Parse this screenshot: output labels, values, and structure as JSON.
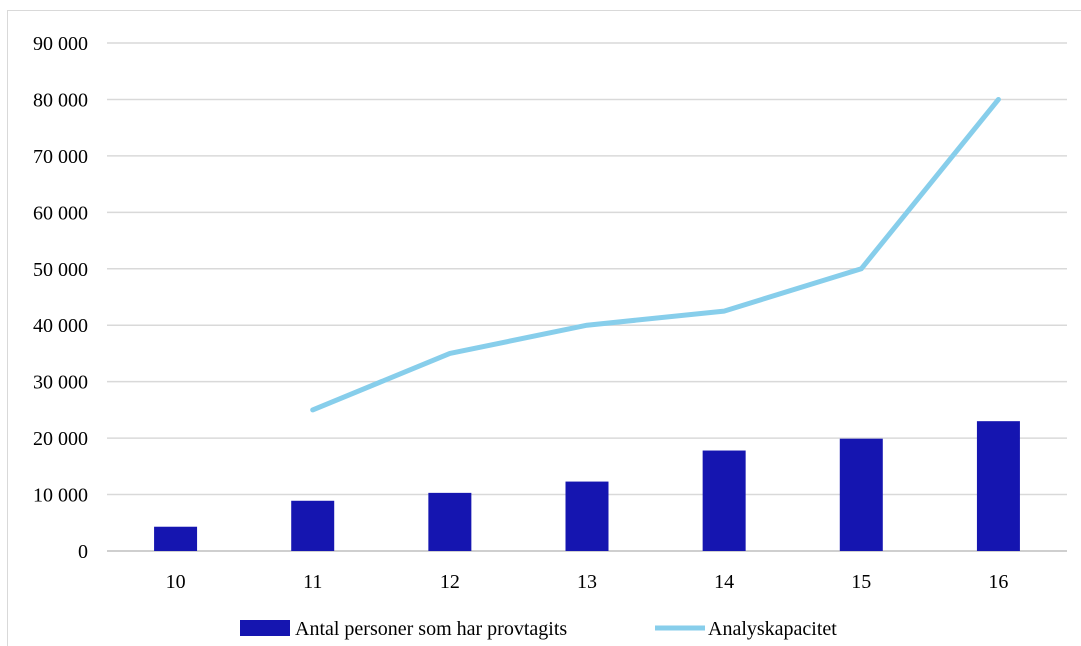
{
  "chart_data": {
    "type": "bar",
    "categories": [
      "10",
      "11",
      "12",
      "13",
      "14",
      "15",
      "16"
    ],
    "ylim": [
      0,
      90000
    ],
    "yticks": [
      0,
      10000,
      20000,
      30000,
      40000,
      50000,
      60000,
      70000,
      80000,
      90000
    ],
    "ytick_labels": [
      "0",
      "10 000",
      "20 000",
      "30 000",
      "40 000",
      "50 000",
      "60 000",
      "70 000",
      "80 000",
      "90 000"
    ],
    "grid": true,
    "legend_position": "bottom",
    "series": [
      {
        "name": "Antal personer som har provtagits",
        "type": "bar",
        "color": "#1515b0",
        "values": [
          4300,
          8900,
          10300,
          12300,
          17800,
          19900,
          23000
        ]
      },
      {
        "name": "Analyskapacitet",
        "type": "line",
        "color": "#87ceeb",
        "values": [
          null,
          25000,
          35000,
          40000,
          42500,
          50000,
          80000
        ]
      }
    ]
  }
}
